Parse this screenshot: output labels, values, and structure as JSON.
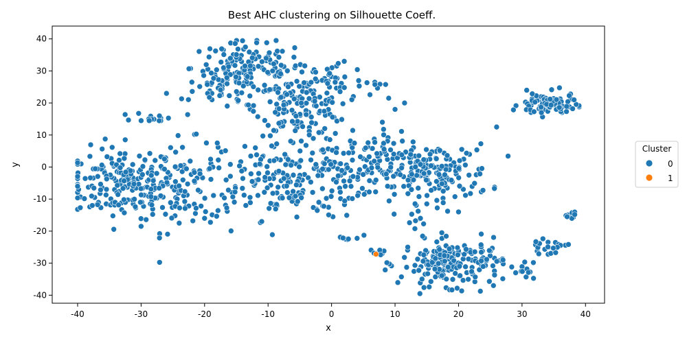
{
  "chart_data": {
    "type": "scatter",
    "title": "Best AHC clustering on Silhouette Coeff.",
    "xlabel": "x",
    "ylabel": "y",
    "xlim": [
      -44,
      43
    ],
    "ylim": [
      -42.5,
      44
    ],
    "xticks": [
      -40,
      -30,
      -20,
      -10,
      0,
      10,
      20,
      30,
      40
    ],
    "yticks": [
      -40,
      -30,
      -20,
      -10,
      0,
      10,
      20,
      30,
      40
    ],
    "grid": false,
    "legend": {
      "title": "Cluster",
      "placement": "center-right outside",
      "entries": [
        {
          "label": "0",
          "color": "#1f77b4"
        },
        {
          "label": "1",
          "color": "#ff7f0e"
        }
      ]
    },
    "series": [
      {
        "name": "0",
        "color": "#1f77b4",
        "clusters": [
          {
            "cx": -33,
            "cy": -5,
            "sx": 4.2,
            "sy": 5.5,
            "n": 180
          },
          {
            "cx": -24,
            "cy": -6,
            "sx": 3.0,
            "sy": 7.0,
            "n": 90
          },
          {
            "cx": -13,
            "cy": 31,
            "sx": 4.5,
            "sy": 4.0,
            "n": 140
          },
          {
            "cx": -17,
            "cy": 24,
            "sx": 2.5,
            "sy": 3.0,
            "n": 40
          },
          {
            "cx": -5,
            "cy": 19,
            "sx": 3.5,
            "sy": 4.5,
            "n": 150
          },
          {
            "cx": 0,
            "cy": 27,
            "sx": 2.5,
            "sy": 4.0,
            "n": 30
          },
          {
            "cx": -8,
            "cy": -4,
            "sx": 7.0,
            "sy": 6.0,
            "n": 200
          },
          {
            "cx": 4,
            "cy": 0,
            "sx": 5.0,
            "sy": 5.5,
            "n": 70
          },
          {
            "cx": 16,
            "cy": -2,
            "sx": 4.5,
            "sy": 4.5,
            "n": 170
          },
          {
            "cx": 8,
            "cy": 5,
            "sx": 2.5,
            "sy": 2.5,
            "n": 25
          },
          {
            "cx": 19,
            "cy": -30,
            "sx": 4.0,
            "sy": 3.5,
            "n": 190
          },
          {
            "cx": 34,
            "cy": 19.5,
            "sx": 2.2,
            "sy": 1.8,
            "n": 95
          },
          {
            "cx": 34,
            "cy": -25,
            "sx": 1.5,
            "sy": 1.0,
            "n": 22
          },
          {
            "cx": 38,
            "cy": -15,
            "sx": 0.8,
            "sy": 0.7,
            "n": 12
          },
          {
            "cx": -28,
            "cy": 15.5,
            "sx": 1.5,
            "sy": 0.7,
            "n": 14
          },
          {
            "cx": 7,
            "cy": 25.5,
            "sx": 0.8,
            "sy": 0.7,
            "n": 6
          },
          {
            "cx": 30.5,
            "cy": -32,
            "sx": 0.7,
            "sy": 1.5,
            "n": 8
          },
          {
            "cx": 3,
            "cy": -22,
            "sx": 1.0,
            "sy": 0.6,
            "n": 8
          },
          {
            "cx": 7.5,
            "cy": -26,
            "sx": 1.0,
            "sy": 1.0,
            "n": 7
          },
          {
            "cx": 13,
            "cy": -17,
            "sx": 1.0,
            "sy": 1.5,
            "n": 5
          }
        ],
        "extra_points": [
          {
            "x": -40,
            "y": -6
          },
          {
            "x": -32.5,
            "y": 8.5
          },
          {
            "x": -26,
            "y": 23
          },
          {
            "x": -22,
            "y": 26.5
          },
          {
            "x": 26,
            "y": 12.5
          },
          {
            "x": 15,
            "y": -11.5
          },
          {
            "x": -11,
            "y": -17
          },
          {
            "x": -20,
            "y": -16
          },
          {
            "x": -18,
            "y": 7.5
          },
          {
            "x": -12,
            "y": 6
          },
          {
            "x": 10,
            "y": 18
          },
          {
            "x": 11.5,
            "y": 20
          },
          {
            "x": 2,
            "y": 33
          },
          {
            "x": 9,
            "y": 21.5
          },
          {
            "x": 8,
            "y": 14
          },
          {
            "x": 20,
            "y": -14
          },
          {
            "x": 14,
            "y": -16
          },
          {
            "x": 27,
            "y": -29
          },
          {
            "x": 29,
            "y": -33
          },
          {
            "x": -30,
            "y": -18.5
          },
          {
            "x": -24,
            "y": -17.5
          },
          {
            "x": -2,
            "y": -11
          },
          {
            "x": 12,
            "y": -25
          },
          {
            "x": 25.5,
            "y": -37
          }
        ]
      },
      {
        "name": "1",
        "color": "#ff7f0e",
        "points": [
          {
            "x": 7,
            "y": -27.2
          }
        ]
      }
    ]
  }
}
